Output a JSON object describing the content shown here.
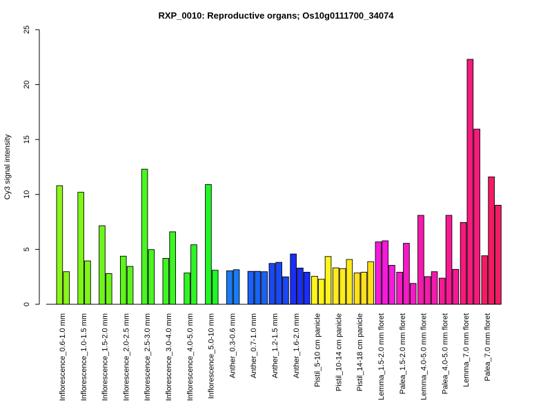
{
  "chart_data": {
    "type": "bar",
    "title": "RXP_0010: Reproductive organs; Os10g0111700_34074",
    "xlabel": "",
    "ylabel": "Cy3 signal intensity",
    "ylim": [
      0,
      25
    ],
    "yticks": [
      0,
      5,
      10,
      15,
      20,
      25
    ],
    "grid": false,
    "legend": "none",
    "groups": [
      {
        "label": "Inflorescence_0.6-1.0 mm",
        "color": "#8CF51A",
        "values": [
          10.8,
          2.97
        ]
      },
      {
        "label": "Inflorescence_1.0-1.5 mm",
        "color": "#7FF51A",
        "values": [
          10.2,
          3.95
        ]
      },
      {
        "label": "Inflorescence_1.5-2.0 mm",
        "color": "#6EF51C",
        "values": [
          7.15,
          2.8
        ]
      },
      {
        "label": "Inflorescence_2.0-2.5 mm",
        "color": "#5CF51E",
        "values": [
          4.38,
          3.45
        ]
      },
      {
        "label": "Inflorescence_2.5-3.0 mm",
        "color": "#4AF520",
        "values": [
          12.3,
          4.98
        ]
      },
      {
        "label": "Inflorescence_3.0-4.0 mm",
        "color": "#3CF522",
        "values": [
          4.18,
          6.6
        ]
      },
      {
        "label": "Inflorescence_4.0-5.0 mm",
        "color": "#2DF524",
        "values": [
          2.85,
          5.42
        ]
      },
      {
        "label": "Inflorescence_5.0-10 mm",
        "color": "#22F526",
        "values": [
          10.9,
          3.1
        ]
      },
      {
        "label": "Anther_0.3-0.6 mm",
        "color": "#1A7CF5",
        "values": [
          3.05,
          3.15
        ]
      },
      {
        "label": "Anther_0.7-1.0 mm",
        "color": "#1A62F5",
        "values": [
          3.0,
          3.0,
          2.97
        ]
      },
      {
        "label": "Anther_1.2-1.5 mm",
        "color": "#1A48F5",
        "values": [
          3.72,
          3.82,
          2.5
        ]
      },
      {
        "label": "Anther_1.6-2.0 mm",
        "color": "#1A2EF5",
        "values": [
          4.58,
          3.3,
          2.92
        ]
      },
      {
        "label": "Pistil_5-10 cm panicle",
        "color": "#FFF51A",
        "values": [
          2.55,
          2.28,
          4.35
        ]
      },
      {
        "label": "Pistil_10-14 cm panicle",
        "color": "#FFEB1A",
        "values": [
          3.32,
          3.25,
          4.08
        ]
      },
      {
        "label": "Pistil_14-18 cm panicle",
        "color": "#FFE01A",
        "values": [
          2.85,
          2.92,
          3.88
        ]
      },
      {
        "label": "Lemma_1.5-2.0 mm floret",
        "color": "#F51ADC",
        "values": [
          5.68,
          5.78,
          3.55
        ]
      },
      {
        "label": "Palea_1.5-2.0 mm floret",
        "color": "#F51AC4",
        "values": [
          2.92,
          5.55,
          1.9
        ]
      },
      {
        "label": "Lemma_4.0-5.0 mm floret",
        "color": "#F51AAC",
        "values": [
          8.1,
          2.52,
          2.97
        ]
      },
      {
        "label": "Palea_4.0-5.0 mm floret",
        "color": "#F51A94",
        "values": [
          2.38,
          8.1,
          3.18
        ]
      },
      {
        "label": "Lemma_7.0 mm floret",
        "color": "#F51A7C",
        "values": [
          7.45,
          22.3,
          15.95
        ]
      },
      {
        "label": "Palea_7.0 mm floret",
        "color": "#F51A64",
        "values": [
          4.42,
          11.6,
          9.02
        ]
      }
    ]
  }
}
